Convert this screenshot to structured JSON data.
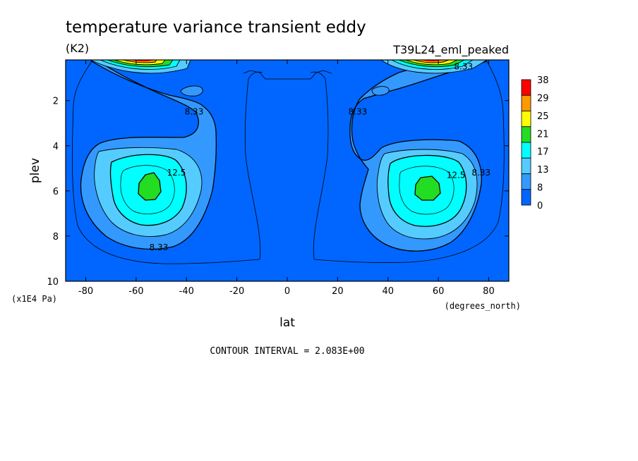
{
  "header": {
    "title": "temperature variance transient eddy",
    "units": "(K2)",
    "dataset": "T39L24_eml_peaked"
  },
  "footer": {
    "contour_interval": "CONTOUR INTERVAL = 2.083E+00"
  },
  "chart_data": {
    "type": "heatmap",
    "subtype": "filled-contour",
    "xlabel": "lat",
    "xunits": "(degrees_north)",
    "ylabel": "plev",
    "yunits": "(x1E4 Pa)",
    "xlim": [
      -88,
      88
    ],
    "ylim": [
      10,
      0.2
    ],
    "y_inverted": true,
    "x_ticks": [
      "-80",
      "-60",
      "-40",
      "-20",
      "0",
      "20",
      "40",
      "60",
      "80"
    ],
    "x_tick_values": [
      -80,
      -60,
      -40,
      -20,
      0,
      20,
      40,
      60,
      80
    ],
    "y_ticks": [
      "2",
      "4",
      "6",
      "8",
      "10"
    ],
    "y_tick_values": [
      2,
      4,
      6,
      8,
      10
    ],
    "contour_labels": [
      {
        "text": "8.33",
        "lat": -37,
        "plev": 2.5
      },
      {
        "text": "12.5",
        "lat": -44,
        "plev": 5.2
      },
      {
        "text": "8.33",
        "lat": -51,
        "plev": 8.5
      },
      {
        "text": "8.33",
        "lat": 28,
        "plev": 2.5
      },
      {
        "text": "12.5",
        "lat": 67,
        "plev": 5.3
      },
      {
        "text": "8.33",
        "lat": 77,
        "plev": 5.2
      },
      {
        "text": "8.33",
        "lat": 70,
        "plev": 0.5
      }
    ],
    "colorbar": {
      "levels": [
        "38",
        "29",
        "25",
        "21",
        "17",
        "13",
        "8",
        "0"
      ],
      "colors": [
        "#ff0000",
        "#ff9900",
        "#ffff00",
        "#22dd22",
        "#00ffff",
        "#55ccff",
        "#3399ff",
        "#0066ff"
      ]
    },
    "features": [
      {
        "region": "southern eddy maximum",
        "lat": -56,
        "plev": 5.8,
        "max_level": 17
      },
      {
        "region": "northern eddy maximum",
        "lat": 55,
        "plev": 5.9,
        "max_level": 17
      },
      {
        "region": "southern stratospheric peak",
        "lat": -65,
        "plev": 0.2,
        "max_level": 38
      },
      {
        "region": "northern stratospheric peak",
        "lat": 65,
        "plev": 0.2,
        "max_level": 38
      }
    ]
  }
}
